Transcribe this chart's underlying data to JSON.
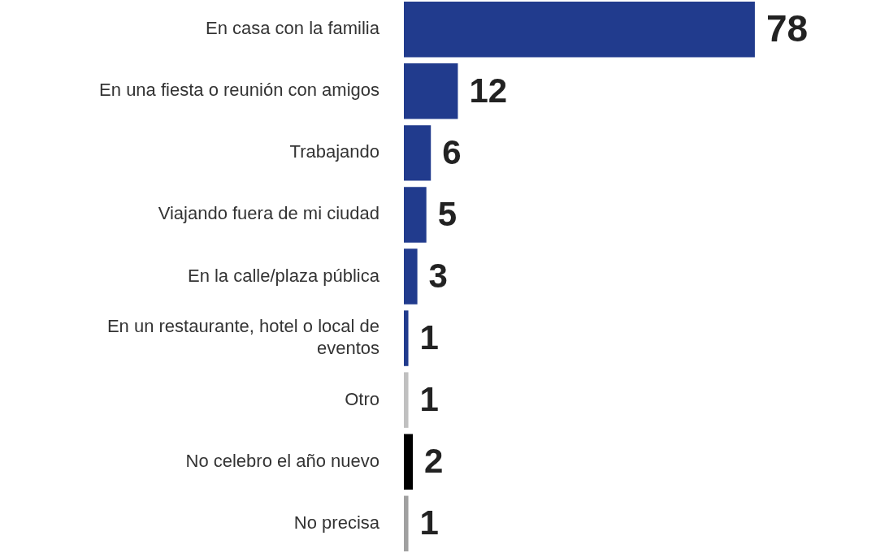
{
  "chart_data": {
    "type": "bar",
    "orientation": "horizontal",
    "categories": [
      "En casa con la familia",
      "En una fiesta o reunión con amigos",
      "Trabajando",
      "Viajando fuera de mi ciudad",
      "En la calle/plaza pública",
      "En un restaurante, hotel o local de eventos",
      "Otro",
      "No celebro el año nuevo",
      "No precisa"
    ],
    "values": [
      78,
      12,
      6,
      5,
      3,
      1,
      1,
      2,
      1
    ],
    "colors": [
      "#213b8d",
      "#213b8d",
      "#213b8d",
      "#213b8d",
      "#213b8d",
      "#213b8d",
      "#c0c0c0",
      "#000000",
      "#a0a0a0"
    ],
    "data_labels": true
  }
}
